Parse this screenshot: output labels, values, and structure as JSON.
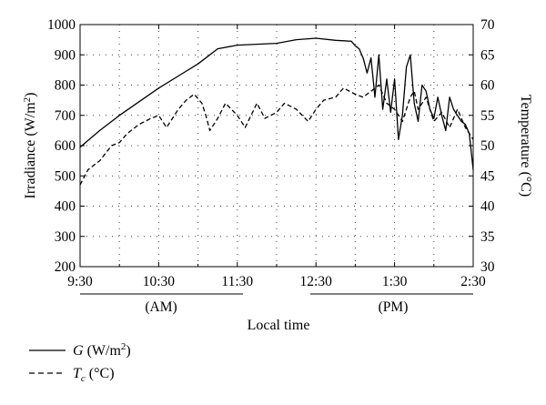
{
  "chart_data": {
    "type": "line",
    "xlabel": "Local time",
    "ylabel_left": "Irradiance (W/m²)",
    "ylabel_left_parts": [
      "Irradiance (W/m",
      "2",
      ")"
    ],
    "ylabel_right": "Temperature (°C)",
    "ylim_left": [
      200,
      1000
    ],
    "ylim_right": [
      30,
      70
    ],
    "xlim_hours": [
      9.5,
      14.5
    ],
    "x_ticks": [
      "9:30",
      "10:30",
      "11:30",
      "12:30",
      "1:30",
      "2:30"
    ],
    "y_ticks_left": [
      200,
      300,
      400,
      500,
      600,
      700,
      800,
      900,
      1000
    ],
    "y_ticks_right": [
      30,
      35,
      40,
      45,
      50,
      55,
      60,
      65,
      70
    ],
    "period_labels": [
      "(AM)",
      "(PM)"
    ],
    "grid": true,
    "series": [
      {
        "name": "G (W/m²)",
        "legend_parts": [
          "G",
          " (W/m",
          "2",
          ")"
        ],
        "style": "solid",
        "axis": "left",
        "x": [
          9.5,
          9.75,
          10.0,
          10.25,
          10.5,
          10.75,
          11.0,
          11.25,
          11.5,
          11.75,
          12.0,
          12.25,
          12.5,
          12.75,
          12.95,
          13.0,
          13.05,
          13.1,
          13.15,
          13.2,
          13.25,
          13.3,
          13.35,
          13.4,
          13.45,
          13.5,
          13.55,
          13.6,
          13.65,
          13.7,
          13.75,
          13.8,
          13.85,
          13.9,
          13.95,
          14.0,
          14.05,
          14.1,
          14.15,
          14.2,
          14.25,
          14.3,
          14.35,
          14.4,
          14.45,
          14.5
        ],
        "y": [
          595,
          650,
          700,
          745,
          790,
          830,
          870,
          920,
          932,
          935,
          938,
          950,
          955,
          948,
          945,
          930,
          920,
          890,
          840,
          890,
          760,
          900,
          720,
          820,
          710,
          820,
          620,
          700,
          860,
          900,
          740,
          680,
          800,
          780,
          720,
          690,
          760,
          700,
          650,
          760,
          720,
          700,
          680,
          670,
          640,
          520
        ]
      },
      {
        "name": "Tc (°C)",
        "legend_parts": [
          "T",
          "c",
          " (°C)"
        ],
        "style": "dashed",
        "axis": "right",
        "x": [
          9.5,
          9.6,
          9.75,
          9.9,
          10.0,
          10.1,
          10.25,
          10.4,
          10.5,
          10.6,
          10.75,
          10.85,
          10.95,
          11.05,
          11.1,
          11.15,
          11.25,
          11.35,
          11.5,
          11.6,
          11.75,
          11.85,
          12.0,
          12.1,
          12.25,
          12.4,
          12.5,
          12.6,
          12.75,
          12.85,
          13.0,
          13.1,
          13.2,
          13.3,
          13.4,
          13.5,
          13.6,
          13.7,
          13.75,
          13.8,
          13.9,
          14.0,
          14.1,
          14.2,
          14.3,
          14.4,
          14.5
        ],
        "y": [
          43.5,
          46,
          47.5,
          50,
          50.5,
          52,
          53.5,
          54.5,
          55,
          53,
          56,
          57.5,
          58.5,
          57,
          55,
          52.5,
          54.5,
          57,
          55,
          53,
          57,
          54.5,
          55.5,
          57,
          56,
          54,
          56,
          57.5,
          58,
          59.5,
          58.5,
          58,
          59,
          60,
          57,
          56,
          54,
          58,
          59,
          56,
          58,
          54,
          55.5,
          53,
          56,
          53,
          51
        ]
      }
    ]
  }
}
